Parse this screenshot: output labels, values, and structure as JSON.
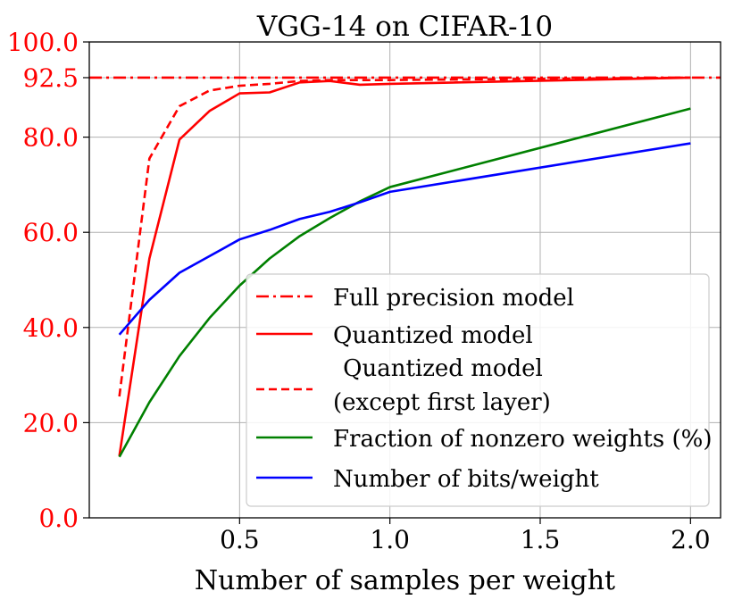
{
  "chart_data": {
    "type": "line",
    "title": "VGG-14 on CIFAR-10",
    "xlabel": "Number of samples per weight",
    "ylabel": "",
    "xlim": [
      0.0,
      2.1
    ],
    "ylim": [
      0.0,
      100.0
    ],
    "grid": true,
    "legend_position": "lower-right",
    "x_ticks": [
      0.5,
      1.0,
      1.5,
      2.0
    ],
    "x_tick_labels": [
      "0.5",
      "1.0",
      "1.5",
      "2.0"
    ],
    "y_ticks": [
      0.0,
      20.0,
      40.0,
      60.0,
      80.0,
      92.5,
      100.0
    ],
    "y_tick_labels": [
      "0.0",
      "20.0",
      "40.0",
      "60.0",
      "80.0",
      "92.5",
      "100.0"
    ],
    "y_tick_color": "#ff0000",
    "series": [
      {
        "name": "Full precision model",
        "legend": [
          "Full precision model"
        ],
        "color": "#ff0000",
        "style": "dashdot",
        "x": [
          0.0,
          2.1
        ],
        "y": [
          92.5,
          92.5
        ]
      },
      {
        "name": "Quantized model",
        "legend": [
          "Quantized model"
        ],
        "color": "#ff0000",
        "style": "solid",
        "x": [
          0.1,
          0.2,
          0.3,
          0.4,
          0.5,
          0.6,
          0.7,
          0.8,
          0.9,
          1.0,
          2.0
        ],
        "y": [
          13.0,
          54.5,
          79.5,
          85.5,
          89.2,
          89.4,
          91.5,
          91.8,
          91.0,
          91.2,
          92.5
        ]
      },
      {
        "name": "Quantized model (except first layer)",
        "legend": [
          "Quantized model",
          "(except first layer)"
        ],
        "color": "#ff0000",
        "style": "dashed",
        "x": [
          0.1,
          0.2,
          0.3,
          0.4,
          0.5,
          0.6,
          0.7,
          0.8,
          0.9,
          1.0,
          2.0
        ],
        "y": [
          25.5,
          75.5,
          86.5,
          89.8,
          90.8,
          91.2,
          91.8,
          92.0,
          92.0,
          92.0,
          92.5
        ]
      },
      {
        "name": "Fraction of nonzero weights (%)",
        "legend": [
          "Fraction of nonzero weights (%)"
        ],
        "color": "#008000",
        "style": "solid",
        "x": [
          0.1,
          0.2,
          0.3,
          0.4,
          0.5,
          0.6,
          0.7,
          0.8,
          0.9,
          1.0,
          2.0
        ],
        "y": [
          12.8,
          24.3,
          34.0,
          42.0,
          48.8,
          54.5,
          59.2,
          63.0,
          66.5,
          69.5,
          86.0
        ]
      },
      {
        "name": "Number of bits/weight",
        "legend": [
          "Number of bits/weight"
        ],
        "color": "#0000ff",
        "style": "solid",
        "x": [
          0.1,
          0.2,
          0.3,
          0.4,
          0.5,
          0.6,
          0.7,
          0.8,
          0.9,
          1.0,
          2.0
        ],
        "y": [
          38.5,
          45.8,
          51.5,
          55.0,
          58.5,
          60.5,
          62.8,
          64.3,
          66.3,
          68.5,
          78.7
        ]
      }
    ]
  }
}
